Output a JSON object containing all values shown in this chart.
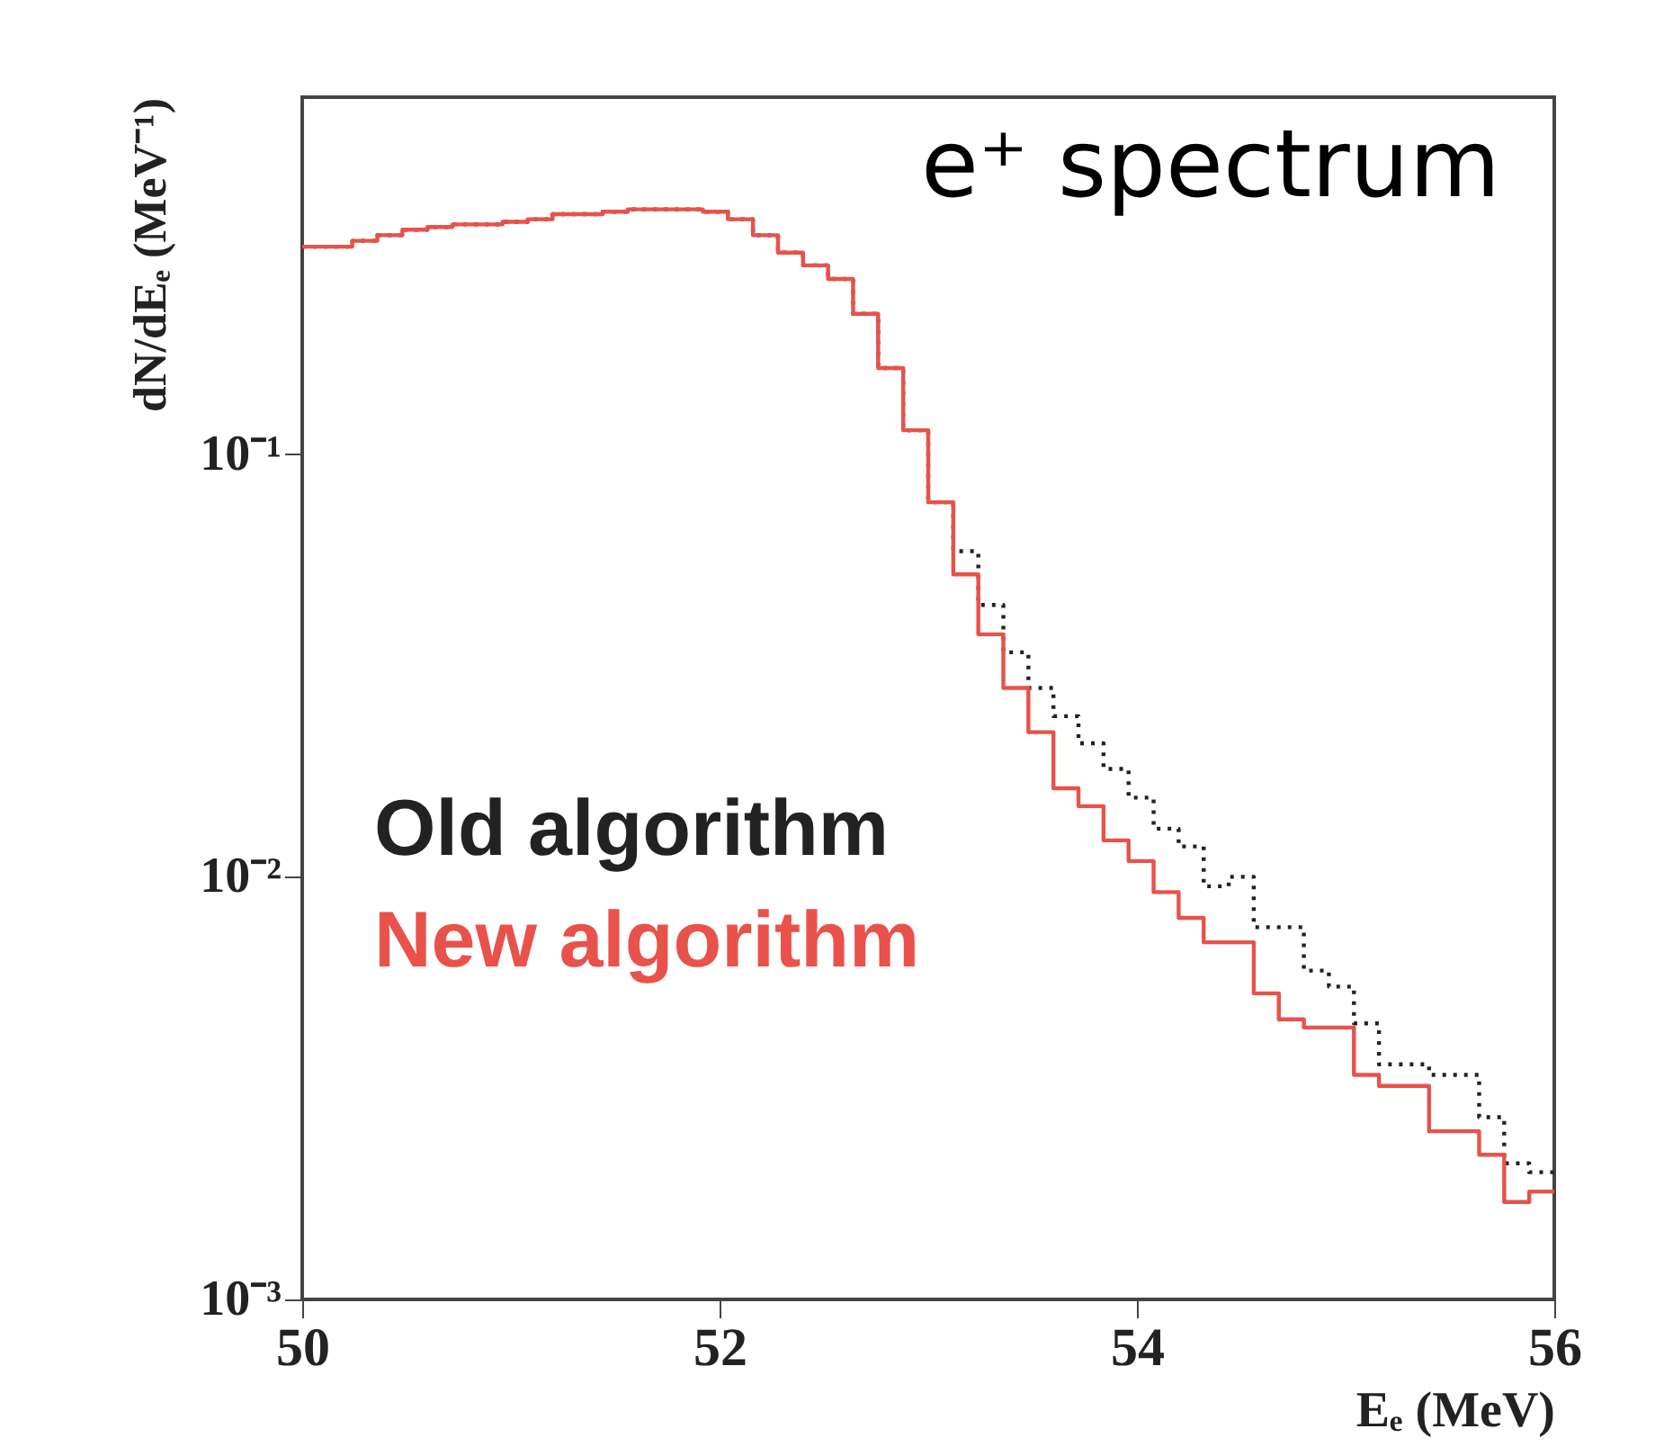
{
  "chart_data": {
    "type": "histogram",
    "xlabel": "Eₑ (MeV)",
    "ylabel": "dN/dEₑ (MeV⁻¹)",
    "annotations": [
      "e⁺ spectrum"
    ],
    "bins": [
      50.0,
      50.12,
      50.24,
      50.36,
      50.48,
      50.6,
      50.72,
      50.84,
      50.96,
      51.08,
      51.2,
      51.32,
      51.44,
      51.56,
      51.68,
      51.8,
      51.92,
      52.04,
      52.16,
      52.28,
      52.4,
      52.52,
      52.64,
      52.76,
      52.88,
      53.0,
      53.12,
      53.24,
      53.36,
      53.48,
      53.6,
      53.72,
      53.84,
      53.96,
      54.08,
      54.2,
      54.32,
      54.44,
      54.56,
      54.68,
      54.8,
      54.92,
      55.04,
      55.16,
      55.28,
      55.4,
      55.52,
      55.64,
      55.76,
      55.88,
      56.0
    ],
    "series": [
      {
        "name": "Old algorithm",
        "color": "#222222",
        "line_style": "dotted",
        "values": [
          0.31,
          0.31,
          0.32,
          0.33,
          0.34,
          0.345,
          0.35,
          0.35,
          0.355,
          0.36,
          0.37,
          0.37,
          0.375,
          0.38,
          0.38,
          0.38,
          0.375,
          0.36,
          0.33,
          0.3,
          0.28,
          0.26,
          0.215,
          0.16,
          0.114,
          0.077,
          0.059,
          0.044,
          0.034,
          0.028,
          0.024,
          0.0207,
          0.018,
          0.0154,
          0.013,
          0.0118,
          0.0095,
          0.01,
          0.0076,
          0.0076,
          0.006,
          0.0055,
          0.0045,
          0.0036,
          0.0036,
          0.0034,
          0.0034,
          0.0027,
          0.0021,
          0.002
        ]
      },
      {
        "name": "New algorithm",
        "color": "#e8524a",
        "line_style": "solid",
        "values": [
          0.31,
          0.31,
          0.32,
          0.33,
          0.34,
          0.345,
          0.35,
          0.35,
          0.355,
          0.36,
          0.37,
          0.37,
          0.375,
          0.38,
          0.38,
          0.38,
          0.375,
          0.36,
          0.33,
          0.3,
          0.28,
          0.26,
          0.215,
          0.16,
          0.114,
          0.077,
          0.052,
          0.0375,
          0.028,
          0.022,
          0.0162,
          0.0147,
          0.0122,
          0.0109,
          0.0092,
          0.008,
          0.007,
          0.007,
          0.0053,
          0.0046,
          0.0044,
          0.0044,
          0.0034,
          0.0032,
          0.0032,
          0.0025,
          0.0025,
          0.0022,
          0.0017,
          0.0018
        ]
      }
    ],
    "log": "y",
    "xlim": [
      50,
      56
    ],
    "xticks": [
      50,
      52,
      54,
      56
    ],
    "ylim": [
      0.001,
      0.7
    ],
    "yticks": [
      {
        "value": 0.001,
        "label": "10⁻³"
      },
      {
        "value": 0.01,
        "label": "10⁻²"
      },
      {
        "value": 0.1,
        "label": "10⁻¹"
      }
    ],
    "legend": "bottom left",
    "grid": false
  }
}
